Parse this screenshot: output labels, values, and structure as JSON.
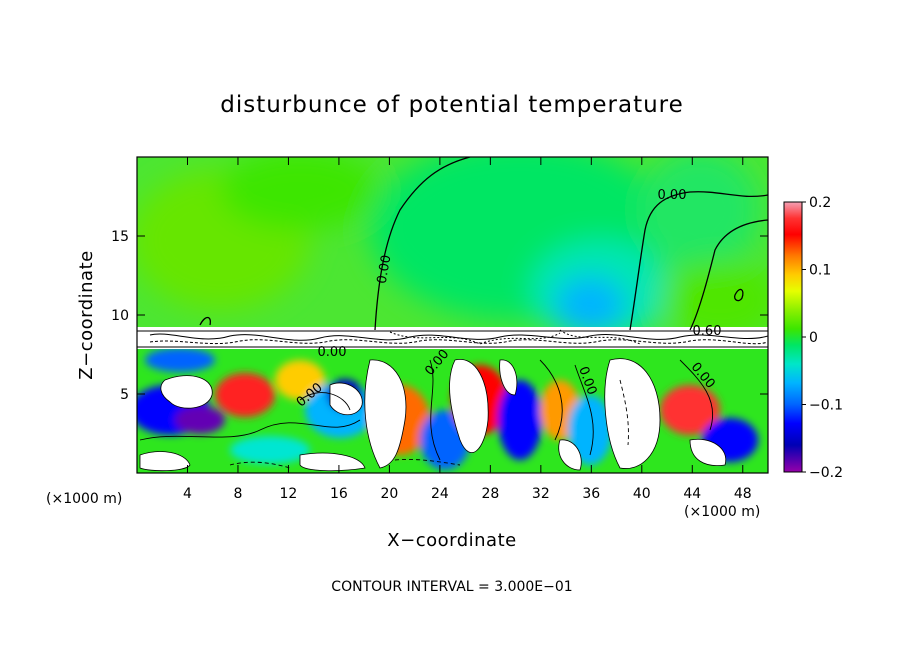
{
  "chart_data": {
    "type": "heatmap",
    "title": "disturbunce of potential temperature",
    "xlabel": "X−coordinate",
    "ylabel": "Z−coordinate",
    "x_unit_left": "(×1000 m)",
    "x_unit_right": "(×1000 m)",
    "xlim": [
      0,
      50
    ],
    "ylim": [
      0,
      20
    ],
    "x_ticks": [
      "4",
      "8",
      "12",
      "16",
      "20",
      "24",
      "28",
      "32",
      "36",
      "40",
      "44",
      "48"
    ],
    "x_tick_values": [
      4,
      8,
      12,
      16,
      20,
      24,
      28,
      32,
      36,
      40,
      44,
      48
    ],
    "y_ticks": [
      "5",
      "10",
      "15"
    ],
    "y_tick_values": [
      5,
      10,
      15
    ],
    "colorbar": {
      "range": [
        -0.2,
        0.2
      ],
      "tick_labels": [
        "0.2",
        "0.1",
        "0",
        "−0.1",
        "−0.2"
      ],
      "tick_values": [
        0.2,
        0.1,
        0,
        -0.1,
        -0.2
      ],
      "colors": [
        "#f4a0b4",
        "#ff3232",
        "#ff0000",
        "#ff6a00",
        "#ff9a00",
        "#ffcc00",
        "#e6ff00",
        "#a6ff00",
        "#62e600",
        "#00e65a",
        "#00e69a",
        "#00e6d2",
        "#00b4ff",
        "#0064ff",
        "#0000ff",
        "#0000c8",
        "#6400b4",
        "#9600aa"
      ]
    },
    "contour_labels": [
      "0.00",
      "0.00",
      "0.00",
      "0.60",
      "0.00",
      "0.00",
      "0.00",
      "0.00"
    ],
    "contour_interval_text": "CONTOUR INTERVAL = 3.000E−01"
  }
}
